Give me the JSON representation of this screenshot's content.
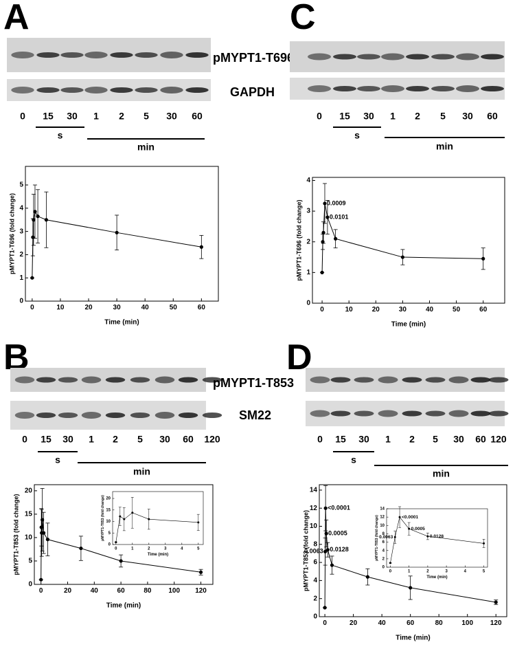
{
  "panels": [
    {
      "letter": "A",
      "blot_labels": [
        "pMYPT1-T696",
        "GAPDH"
      ],
      "lanes": [
        "0",
        "15",
        "30",
        "1",
        "2",
        "5",
        "30",
        "60"
      ],
      "seconds": "s",
      "minutes": "min"
    },
    {
      "letter": "C",
      "lanes": [
        "0",
        "15",
        "30",
        "1",
        "2",
        "5",
        "30",
        "60"
      ],
      "seconds": "s",
      "minutes": "min"
    },
    {
      "letter": "B",
      "blot_labels": [
        "pMYPT1-T853",
        "SM22"
      ],
      "lanes": [
        "0",
        "15",
        "30",
        "1",
        "2",
        "5",
        "30",
        "60",
        "120"
      ],
      "seconds": "s",
      "minutes": "min"
    },
    {
      "letter": "D",
      "lanes": [
        "0",
        "15",
        "30",
        "1",
        "2",
        "5",
        "30",
        "60",
        "120"
      ],
      "seconds": "s",
      "minutes": "min"
    }
  ],
  "chart_data": [
    {
      "type": "line",
      "xlabel": "Time (min)",
      "ylabel": "pMYPT1-T696 (fold change)",
      "x": [
        0,
        0.25,
        0.5,
        1,
        2,
        5,
        30,
        60
      ],
      "series": [
        {
          "color": "#000000",
          "values": [
            1.0,
            2.75,
            3.5,
            3.85,
            3.65,
            3.5,
            2.95,
            2.33
          ],
          "errors": [
            0,
            0.8,
            1.1,
            1.15,
            1.15,
            1.2,
            0.75,
            0.5
          ]
        }
      ],
      "xlim": [
        -2.4,
        66
      ],
      "ylim": [
        0,
        5.8
      ],
      "xticks": [
        0,
        10,
        20,
        30,
        40,
        50,
        60
      ],
      "yticks": [
        0,
        1,
        2,
        3,
        4,
        5
      ]
    },
    {
      "type": "line",
      "xlabel": "Time (min)",
      "ylabel": "pMYPT1-T696 (fold change)",
      "x": [
        0,
        0.25,
        0.5,
        1,
        2,
        5,
        30,
        60
      ],
      "series": [
        {
          "color": "#000000",
          "values": [
            1.0,
            2.0,
            2.3,
            3.25,
            2.8,
            2.1,
            1.5,
            1.45
          ],
          "errors": [
            0,
            0.25,
            0.35,
            0.65,
            0.55,
            0.3,
            0.25,
            0.35
          ],
          "p_values": [
            null,
            null,
            null,
            "0.0009",
            "0.0101",
            null,
            null,
            null
          ]
        }
      ],
      "xlim": [
        -3.6,
        68
      ],
      "ylim": [
        0,
        4.1
      ],
      "xticks": [
        0,
        10,
        20,
        30,
        40,
        50,
        60
      ],
      "yticks": [
        0,
        1,
        2,
        3,
        4
      ]
    },
    {
      "type": "line",
      "xlabel": "Time (min)",
      "ylabel": "pMYPT1-T853 (fold change)",
      "x": [
        0,
        0.25,
        0.5,
        1,
        2,
        5,
        30,
        60,
        120
      ],
      "series": [
        {
          "color": "#000000",
          "values": [
            1.0,
            12.2,
            11.0,
            13.8,
            11.0,
            9.6,
            7.7,
            5.0,
            2.6
          ],
          "errors": [
            0,
            4.0,
            5.0,
            6.7,
            4.4,
            3.5,
            2.6,
            1.3,
            0.6
          ]
        }
      ],
      "xlim": [
        -5,
        129
      ],
      "ylim": [
        0,
        21.3
      ],
      "xticks": [
        0,
        20,
        40,
        60,
        80,
        100,
        120
      ],
      "yticks": [
        0,
        5,
        10,
        15,
        20
      ],
      "inset": {
        "xlabel": "Time (min)",
        "ylabel": "pMYPT1-T853 (fold change)",
        "xlim": [
          -0.2,
          5.3
        ],
        "ylim": [
          0,
          23
        ],
        "xticks": [
          0,
          1,
          2,
          3,
          4,
          5
        ],
        "yticks": [
          0,
          5,
          10,
          15,
          20
        ]
      }
    },
    {
      "type": "line",
      "xlabel": "Time (min)",
      "ylabel": "pMYPT1-T853 (fold change)",
      "x": [
        0,
        0.25,
        0.5,
        1,
        2,
        5,
        30,
        60,
        120
      ],
      "series": [
        {
          "color": "#000000",
          "values": [
            1.0,
            7.2,
            12.0,
            9.2,
            7.4,
            5.7,
            4.4,
            3.2,
            1.6
          ],
          "errors": [
            0,
            1.5,
            2.5,
            1.5,
            0.8,
            1.0,
            0.9,
            1.3,
            0.25
          ],
          "p_values": [
            null,
            "0.0063",
            "<0.0001",
            "0.0005",
            "0.0128",
            null,
            null,
            null,
            null
          ]
        }
      ],
      "xlim": [
        -3.9,
        127.6
      ],
      "ylim": [
        0,
        14.6
      ],
      "xticks": [
        0,
        20,
        40,
        60,
        80,
        100,
        120
      ],
      "yticks": [
        0,
        2,
        4,
        6,
        8,
        10,
        12,
        14
      ],
      "inset": {
        "xlabel": "Time (min)",
        "ylabel": "pMYPT1-T853 (fold change)",
        "xlim": [
          -0.2,
          5.2
        ],
        "ylim": [
          0,
          14
        ],
        "xticks": [
          0,
          1,
          2,
          3,
          4,
          5
        ],
        "yticks": [
          0,
          2,
          4,
          6,
          8,
          10,
          12,
          14
        ]
      }
    }
  ]
}
